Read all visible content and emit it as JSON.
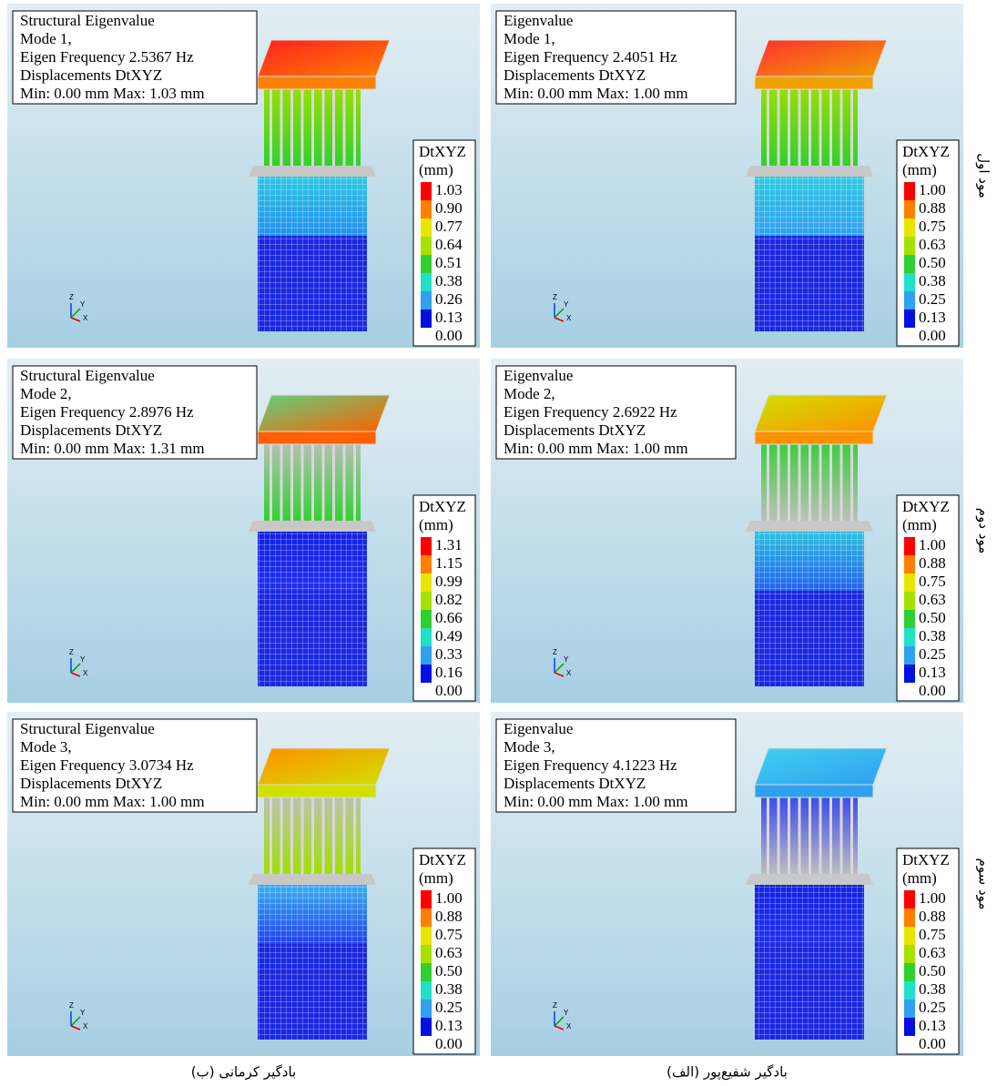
{
  "rows": [
    {
      "label": "مود اول",
      "panels": [
        {
          "info": [
            "Structural Eigenvalue",
            "Mode 1,",
            "Eigen Frequency 2.5367 Hz",
            "Displacements DtXYZ",
            "Min: 0.00 mm Max: 1.03 mm"
          ],
          "legend_title": [
            "DtXYZ",
            "(mm)"
          ],
          "legend_values": [
            "1.03",
            "0.90",
            "0.77",
            "0.64",
            "0.51",
            "0.38",
            "0.26",
            "0.13",
            "0.00"
          ]
        },
        {
          "info": [
            "Eigenvalue",
            "Mode 1,",
            "Eigen Frequency 2.4051 Hz",
            "Displacements DtXYZ",
            "Min: 0.00 mm Max: 1.00 mm"
          ],
          "legend_title": [
            "DtXYZ",
            "(mm)"
          ],
          "legend_values": [
            "1.00",
            "0.88",
            "0.75",
            "0.63",
            "0.50",
            "0.38",
            "0.25",
            "0.13",
            "0.00"
          ]
        }
      ]
    },
    {
      "label": "مود دوم",
      "panels": [
        {
          "info": [
            "Structural Eigenvalue",
            "Mode 2,",
            "Eigen Frequency 2.8976 Hz",
            "Displacements DtXYZ",
            "Min: 0.00 mm Max: 1.31 mm"
          ],
          "legend_title": [
            "DtXYZ",
            "(mm)"
          ],
          "legend_values": [
            "1.31",
            "1.15",
            "0.99",
            "0.82",
            "0.66",
            "0.49",
            "0.33",
            "0.16",
            "0.00"
          ]
        },
        {
          "info": [
            "Eigenvalue",
            "Mode 2,",
            "Eigen Frequency 2.6922 Hz",
            "Displacements DtXYZ",
            "Min: 0.00 mm Max: 1.00 mm"
          ],
          "legend_title": [
            "DtXYZ",
            "(mm)"
          ],
          "legend_values": [
            "1.00",
            "0.88",
            "0.75",
            "0.63",
            "0.50",
            "0.38",
            "0.25",
            "0.13",
            "0.00"
          ]
        }
      ]
    },
    {
      "label": "مود سوم",
      "panels": [
        {
          "info": [
            "Structural Eigenvalue",
            "Mode 3,",
            "Eigen Frequency 3.0734 Hz",
            "Displacements DtXYZ",
            "Min: 0.00 mm Max: 1.00 mm"
          ],
          "legend_title": [
            "DtXYZ",
            "(mm)"
          ],
          "legend_values": [
            "1.00",
            "0.88",
            "0.75",
            "0.63",
            "0.50",
            "0.38",
            "0.25",
            "0.13",
            "0.00"
          ]
        },
        {
          "info": [
            "Eigenvalue",
            "Mode 3,",
            "Eigen Frequency 4.1223 Hz",
            "Displacements DtXYZ",
            "Min: 0.00 mm Max: 1.00 mm"
          ],
          "legend_title": [
            "DtXYZ",
            "(mm)"
          ],
          "legend_values": [
            "1.00",
            "0.88",
            "0.75",
            "0.63",
            "0.50",
            "0.38",
            "0.25",
            "0.13",
            "0.00"
          ]
        }
      ]
    }
  ],
  "axis_labels": [
    "Z",
    "Y",
    "X"
  ],
  "captions": [
    "بادگیر کرمانی (ب)",
    "بادگیر شفیع‌پور (الف)"
  ]
}
